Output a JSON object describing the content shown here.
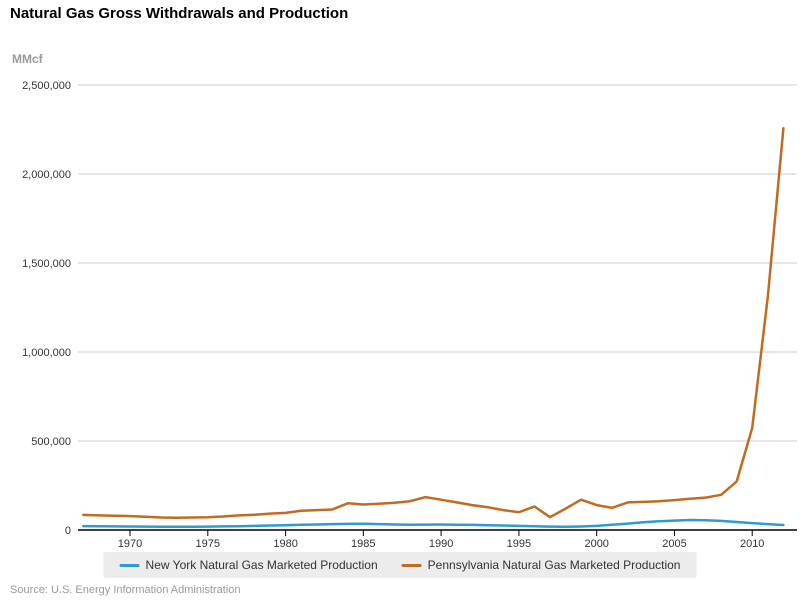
{
  "page": {
    "title": "Natural Gas Gross Withdrawals and Production",
    "unit_label": "MMcf",
    "source": "Source: U.S. Energy Information Administration"
  },
  "legend": {
    "items": [
      {
        "label": "New York Natural Gas Marketed Production",
        "color": "#2d9bd2"
      },
      {
        "label": "Pennsylvania Natural Gas Marketed Production",
        "color": "#c06b22"
      }
    ]
  },
  "colors": {
    "gridline": "#cccccc",
    "axis": "#000000",
    "tick_label": "#333333",
    "legend_background": "#ececec",
    "muted_text": "#999999"
  },
  "chart_data": {
    "type": "line",
    "title": "Natural Gas Gross Withdrawals and Production",
    "xlabel": "",
    "ylabel": "MMcf",
    "grid": true,
    "legend_position": "bottom",
    "ylim": [
      0,
      2500000
    ],
    "xlim": [
      1966.6,
      2012.9
    ],
    "yticks": [
      0,
      500000,
      1000000,
      1500000,
      2000000,
      2500000
    ],
    "ytick_labels": [
      "0",
      "500,000",
      "1,000,000",
      "1,500,000",
      "2,000,000",
      "2,500,000"
    ],
    "xticks": [
      1970,
      1975,
      1980,
      1985,
      1990,
      1995,
      2000,
      2005,
      2010
    ],
    "x": [
      1967,
      1968,
      1969,
      1970,
      1971,
      1972,
      1973,
      1974,
      1975,
      1976,
      1977,
      1978,
      1979,
      1980,
      1981,
      1982,
      1983,
      1984,
      1985,
      1986,
      1987,
      1988,
      1989,
      1990,
      1991,
      1992,
      1993,
      1994,
      1995,
      1996,
      1997,
      1998,
      1999,
      2000,
      2001,
      2002,
      2003,
      2004,
      2005,
      2006,
      2007,
      2008,
      2009,
      2010,
      2011,
      2012
    ],
    "series": [
      {
        "name": "New York Natural Gas Marketed Production",
        "color": "#2d9bd2",
        "values": [
          22000,
          21000,
          20000,
          19500,
          19000,
          18500,
          18000,
          18500,
          19000,
          20000,
          21500,
          23000,
          25000,
          27000,
          29000,
          31000,
          33000,
          34500,
          35000,
          33000,
          31000,
          30000,
          30500,
          31000,
          30000,
          28500,
          27000,
          25000,
          23000,
          21000,
          19000,
          18000,
          19500,
          23000,
          29000,
          36000,
          43000,
          49000,
          53000,
          56000,
          55000,
          51000,
          45000,
          39000,
          33000,
          28000
        ]
      },
      {
        "name": "Pennsylvania Natural Gas Marketed Production",
        "color": "#c06b22",
        "values": [
          85000,
          82000,
          80000,
          78000,
          74000,
          70000,
          69000,
          70000,
          72000,
          76000,
          82000,
          86000,
          92000,
          96000,
          108000,
          112000,
          115000,
          150000,
          143000,
          148000,
          153000,
          162000,
          185000,
          170000,
          155000,
          140000,
          128000,
          112000,
          100000,
          132000,
          72000,
          120000,
          170000,
          140000,
          125000,
          155000,
          158000,
          161000,
          168000,
          176000,
          182000,
          198000,
          273000,
          573000,
          1310000,
          2257000
        ]
      }
    ]
  }
}
